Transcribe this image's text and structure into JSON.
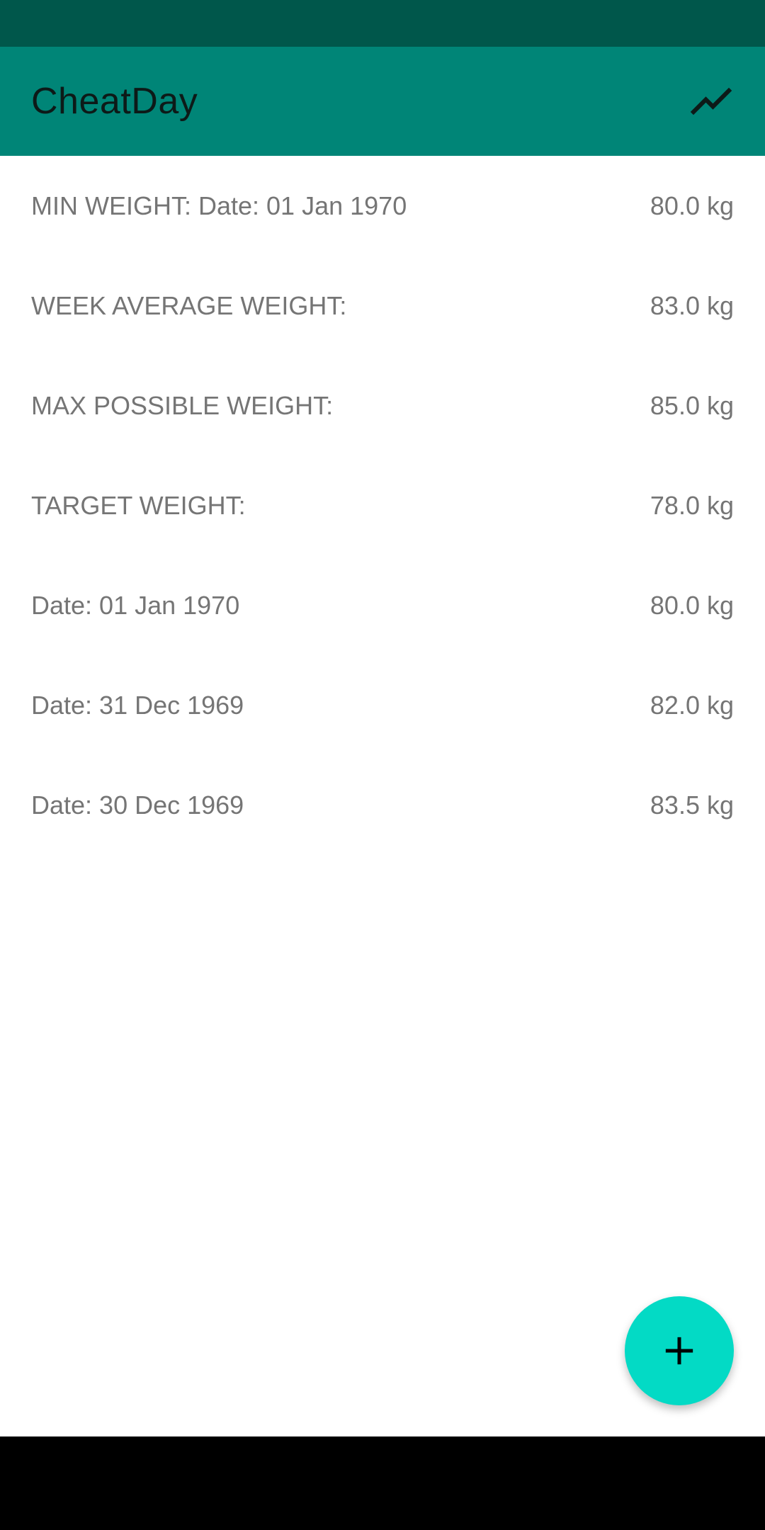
{
  "app_bar": {
    "title": "CheatDay",
    "chart_icon": "trending-up-icon"
  },
  "summary": [
    {
      "label": "MIN WEIGHT: Date: 01 Jan 1970",
      "value": "80.0 kg"
    },
    {
      "label": "WEEK AVERAGE WEIGHT:",
      "value": "83.0 kg"
    },
    {
      "label": "MAX POSSIBLE WEIGHT:",
      "value": "85.0 kg"
    },
    {
      "label": "TARGET WEIGHT:",
      "value": "78.0 kg"
    }
  ],
  "entries": [
    {
      "label": "Date: 01 Jan 1970",
      "value": "80.0 kg"
    },
    {
      "label": "Date: 31 Dec 1969",
      "value": "82.0 kg"
    },
    {
      "label": "Date: 30 Dec 1969",
      "value": "83.5 kg"
    }
  ],
  "fab": {
    "icon": "plus-icon"
  },
  "colors": {
    "status_bar": "#00574B",
    "app_bar": "#008577",
    "fab": "#03DAC5",
    "row_text": "#757575"
  }
}
